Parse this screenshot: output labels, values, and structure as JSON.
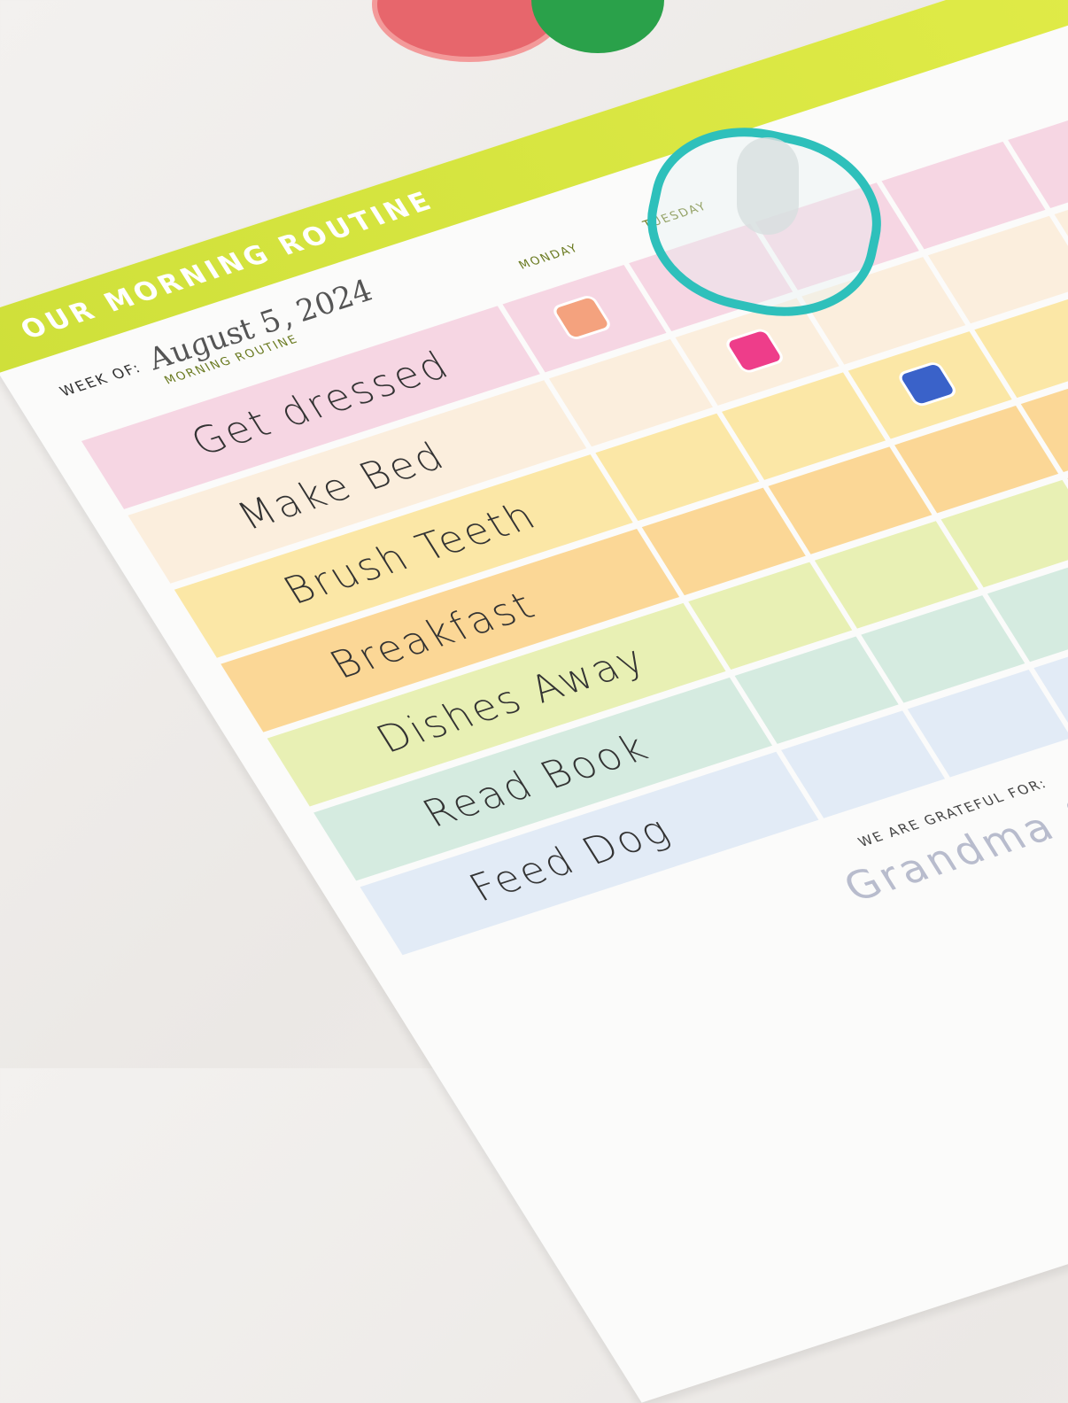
{
  "chart": {
    "title": "OUR MORNING ROUTINE",
    "week_label": "WEEK OF:",
    "week_value": "August 5, 2024",
    "column_header": "MORNING ROUTINE",
    "days": [
      "MONDAY",
      "TUESDAY"
    ],
    "tasks": [
      {
        "label": "Get dressed",
        "color": "#f6d6e3",
        "sticker": "dress-sticker",
        "sticker_color": "#f4a27e"
      },
      {
        "label": "Make Bed",
        "color": "#fbeedd",
        "sticker": "swimsuit-sticker",
        "sticker_color": "#ee3d8a"
      },
      {
        "label": "Brush Teeth",
        "color": "#fbe7a6",
        "sticker": "tooth-sticker",
        "sticker_color": "#3a62c9"
      },
      {
        "label": "Breakfast",
        "color": "#fbd796",
        "sticker": "pancake-sticker",
        "sticker_color": "#f0a42a"
      },
      {
        "label": "Dishes Away",
        "color": "#e8f0b4",
        "sticker": "plate-sticker",
        "sticker_color": "#e84b3d"
      },
      {
        "label": "Read Book",
        "color": "#d5ebe0",
        "sticker": "books-sticker",
        "sticker_color": "#3bb06b"
      },
      {
        "label": "Feed Dog",
        "color": "#e2ebf6",
        "sticker": "paw-sticker",
        "sticker_color": "#1aa58a"
      }
    ],
    "grateful_label": "WE ARE GRATEFUL FOR:",
    "grateful_text": "Grandma & Grandpa visiting"
  }
}
